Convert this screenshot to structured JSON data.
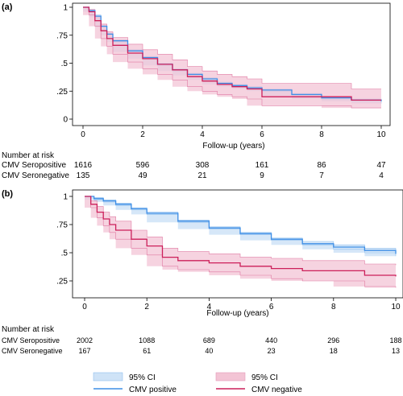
{
  "chart_data": [
    {
      "type": "line",
      "panel_label": "(a)",
      "xlabel": "Follow-up (years)",
      "ylabel": "",
      "xlim": [
        0,
        10
      ],
      "ylim": [
        0,
        1
      ],
      "x_ticks": [
        0,
        2,
        4,
        6,
        8,
        10
      ],
      "y_ticks": [
        0,
        0.25,
        0.5,
        0.75,
        1
      ],
      "y_tick_labels": [
        "0",
        ".25",
        ".5",
        ".75",
        "1"
      ],
      "grid": false,
      "colors": {
        "positive": "#3d8ee6",
        "negative": "#cc1f5a",
        "ci_positive": "#cfe3f7",
        "ci_negative": "#f3c4d5"
      },
      "series": [
        {
          "key": "positive",
          "x": [
            0,
            0.2,
            0.4,
            0.6,
            0.8,
            1.0,
            1.5,
            2.0,
            2.5,
            3.0,
            3.5,
            4.0,
            4.5,
            5.0,
            5.5,
            6.0,
            7.0,
            8.0,
            9.0,
            10.0
          ],
          "y": [
            1,
            0.97,
            0.92,
            0.83,
            0.76,
            0.7,
            0.61,
            0.55,
            0.49,
            0.44,
            0.4,
            0.36,
            0.32,
            0.3,
            0.28,
            0.26,
            0.22,
            0.19,
            0.17,
            0.16
          ],
          "lo": [
            1,
            0.96,
            0.91,
            0.82,
            0.75,
            0.69,
            0.6,
            0.54,
            0.48,
            0.43,
            0.39,
            0.35,
            0.31,
            0.29,
            0.27,
            0.25,
            0.21,
            0.18,
            0.16,
            0.14
          ],
          "hi": [
            1,
            0.98,
            0.93,
            0.84,
            0.77,
            0.71,
            0.62,
            0.56,
            0.5,
            0.45,
            0.41,
            0.37,
            0.33,
            0.31,
            0.29,
            0.27,
            0.23,
            0.2,
            0.18,
            0.17
          ]
        },
        {
          "key": "negative",
          "x": [
            0,
            0.2,
            0.4,
            0.6,
            0.8,
            1.0,
            1.5,
            2.0,
            2.5,
            3.0,
            3.5,
            4.0,
            4.5,
            5.0,
            5.5,
            6.0,
            7.0,
            8.0,
            9.0,
            10.0
          ],
          "y": [
            1,
            0.96,
            0.88,
            0.79,
            0.72,
            0.66,
            0.59,
            0.54,
            0.49,
            0.44,
            0.38,
            0.34,
            0.31,
            0.29,
            0.27,
            0.2,
            0.2,
            0.2,
            0.17,
            0.17
          ],
          "lo": [
            1,
            0.93,
            0.83,
            0.72,
            0.65,
            0.58,
            0.51,
            0.45,
            0.4,
            0.35,
            0.29,
            0.25,
            0.22,
            0.2,
            0.18,
            0.12,
            0.12,
            0.12,
            0.1,
            0.1
          ],
          "hi": [
            1,
            0.98,
            0.92,
            0.85,
            0.78,
            0.73,
            0.67,
            0.62,
            0.58,
            0.53,
            0.47,
            0.43,
            0.4,
            0.38,
            0.36,
            0.32,
            0.32,
            0.32,
            0.27,
            0.27
          ]
        }
      ],
      "risk_table": {
        "header": "Number at risk",
        "rows": [
          {
            "label": "CMV Seropositive",
            "values": [
              "1616",
              "596",
              "308",
              "161",
              "86",
              "47"
            ]
          },
          {
            "label": "CMV Seronegative",
            "values": [
              "135",
              "49",
              "21",
              "9",
              "7",
              "4"
            ]
          }
        ]
      }
    },
    {
      "type": "line",
      "panel_label": "(b)",
      "xlabel": "Follow-up (years)",
      "ylabel": "",
      "xlim": [
        0,
        10
      ],
      "ylim": [
        0,
        1
      ],
      "x_ticks": [
        0,
        2,
        4,
        6,
        8,
        10
      ],
      "y_ticks": [
        0.25,
        0.5,
        0.75,
        1
      ],
      "y_tick_labels": [
        ".25",
        ".5",
        ".75",
        "1"
      ],
      "grid": false,
      "colors": {
        "positive": "#3d8ee6",
        "negative": "#cc1f5a",
        "ci_positive": "#cfe3f7",
        "ci_negative": "#f3c4d5"
      },
      "series": [
        {
          "key": "positive",
          "x": [
            0,
            0.3,
            0.6,
            1.0,
            1.5,
            2.0,
            3.0,
            4.0,
            5.0,
            6.0,
            7.0,
            8.0,
            9.0,
            10.0
          ],
          "y": [
            1,
            0.98,
            0.96,
            0.93,
            0.89,
            0.85,
            0.78,
            0.72,
            0.67,
            0.62,
            0.58,
            0.55,
            0.52,
            0.49
          ],
          "lo": [
            1,
            0.97,
            0.95,
            0.92,
            0.88,
            0.84,
            0.77,
            0.71,
            0.66,
            0.61,
            0.57,
            0.53,
            0.5,
            0.47
          ],
          "hi": [
            1,
            0.99,
            0.97,
            0.94,
            0.9,
            0.86,
            0.79,
            0.73,
            0.68,
            0.63,
            0.6,
            0.57,
            0.54,
            0.52
          ]
        },
        {
          "key": "negative",
          "x": [
            0,
            0.2,
            0.4,
            0.6,
            0.8,
            1.0,
            1.5,
            2.0,
            2.5,
            3.0,
            4.0,
            5.0,
            6.0,
            7.0,
            8.0,
            9.0,
            10.0
          ],
          "y": [
            1,
            0.93,
            0.86,
            0.8,
            0.75,
            0.7,
            0.62,
            0.56,
            0.46,
            0.43,
            0.41,
            0.38,
            0.36,
            0.34,
            0.34,
            0.3,
            0.29
          ],
          "lo": [
            1,
            0.9,
            0.81,
            0.74,
            0.68,
            0.62,
            0.54,
            0.48,
            0.38,
            0.35,
            0.33,
            0.3,
            0.27,
            0.25,
            0.25,
            0.2,
            0.19
          ],
          "hi": [
            1,
            0.96,
            0.91,
            0.86,
            0.82,
            0.78,
            0.7,
            0.64,
            0.54,
            0.51,
            0.49,
            0.46,
            0.45,
            0.43,
            0.43,
            0.4,
            0.39
          ]
        }
      ],
      "risk_table": {
        "header": "Number at risk",
        "rows": [
          {
            "label": "CMV Seropositive",
            "values": [
              "2002",
              "1088",
              "689",
              "440",
              "296",
              "188"
            ]
          },
          {
            "label": "CMV Seronegative",
            "values": [
              "167",
              "61",
              "40",
              "23",
              "18",
              "13"
            ]
          }
        ]
      },
      "legend": {
        "placement": "bottom",
        "items": [
          {
            "label": "95% CI",
            "kind": "band",
            "key": "ci_positive"
          },
          {
            "label": "95% CI",
            "kind": "band",
            "key": "ci_negative"
          },
          {
            "label": "CMV positive",
            "kind": "line",
            "key": "positive"
          },
          {
            "label": "CMV negative",
            "kind": "line",
            "key": "negative"
          }
        ]
      }
    }
  ]
}
